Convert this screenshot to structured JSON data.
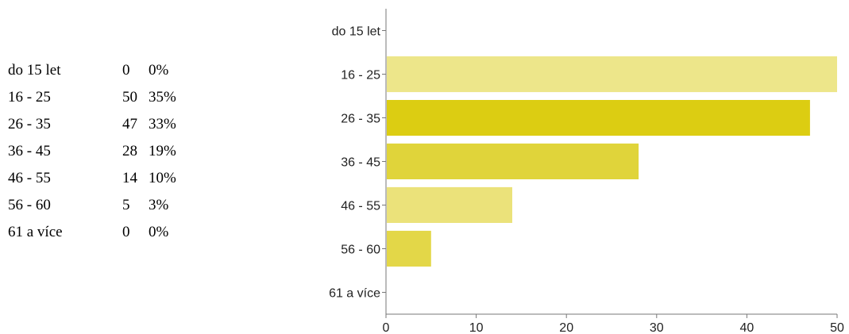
{
  "summary": {
    "rows": [
      {
        "label": "do 15 let",
        "count": "0",
        "percent": "0%"
      },
      {
        "label": "16 - 25",
        "count": "50",
        "percent": "35%"
      },
      {
        "label": "26 - 35",
        "count": "47",
        "percent": "33%"
      },
      {
        "label": "36 - 45",
        "count": "28",
        "percent": "19%"
      },
      {
        "label": "46 - 55",
        "count": "14",
        "percent": "10%"
      },
      {
        "label": "56 - 60",
        "count": "5",
        "percent": "3%"
      },
      {
        "label": "61 a více",
        "count": "0",
        "percent": "0%"
      }
    ]
  },
  "chart_data": {
    "type": "bar",
    "orientation": "horizontal",
    "categories": [
      "do 15 let",
      "16 - 25",
      "26 - 35",
      "36 - 45",
      "46 - 55",
      "56 - 60",
      "61 a více"
    ],
    "values": [
      0,
      50,
      47,
      28,
      14,
      5,
      0
    ],
    "colors": [
      "#ede68a",
      "#ede68a",
      "#dccd12",
      "#e0d43a",
      "#ebe27a",
      "#e3d748",
      "#ede68a"
    ],
    "xlim": [
      0,
      50
    ],
    "xticks": [
      0,
      10,
      20,
      30,
      40,
      50
    ],
    "title": "",
    "xlabel": "",
    "ylabel": "",
    "grid": false,
    "legend": "none"
  }
}
